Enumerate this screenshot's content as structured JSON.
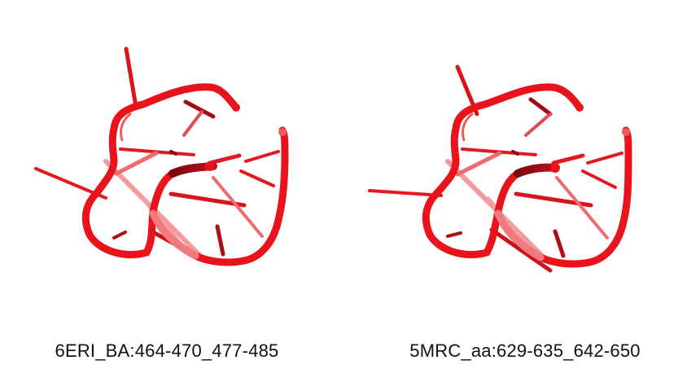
{
  "colors": {
    "backbone": "#e8131b",
    "backbone_dark": "#8a0a10",
    "backbone_light": "#f05a5e",
    "bases": "#d9141c"
  },
  "panels": [
    {
      "id": "left",
      "caption": "6ERI_BA:464-470_477-485"
    },
    {
      "id": "right",
      "caption": "5MRC_aa:629-635_642-650"
    }
  ]
}
